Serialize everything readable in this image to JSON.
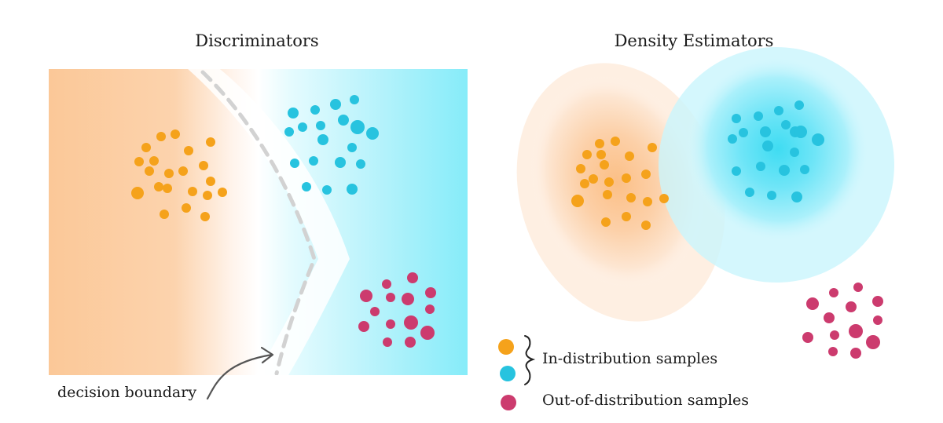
{
  "panels": {
    "left_title": "Discriminators",
    "right_title": "Density Estimators"
  },
  "annotation": {
    "decision_boundary": "decision boundary"
  },
  "legend": {
    "in_distribution": "In-distribution samples",
    "out_of_distribution": "Out-of-distribution samples"
  },
  "colors": {
    "class_a": "#f5a21b",
    "class_b": "#27c3df",
    "ood": "#cc3b6e",
    "region_a": "#fbc998",
    "region_b": "#7fe6f6"
  }
}
